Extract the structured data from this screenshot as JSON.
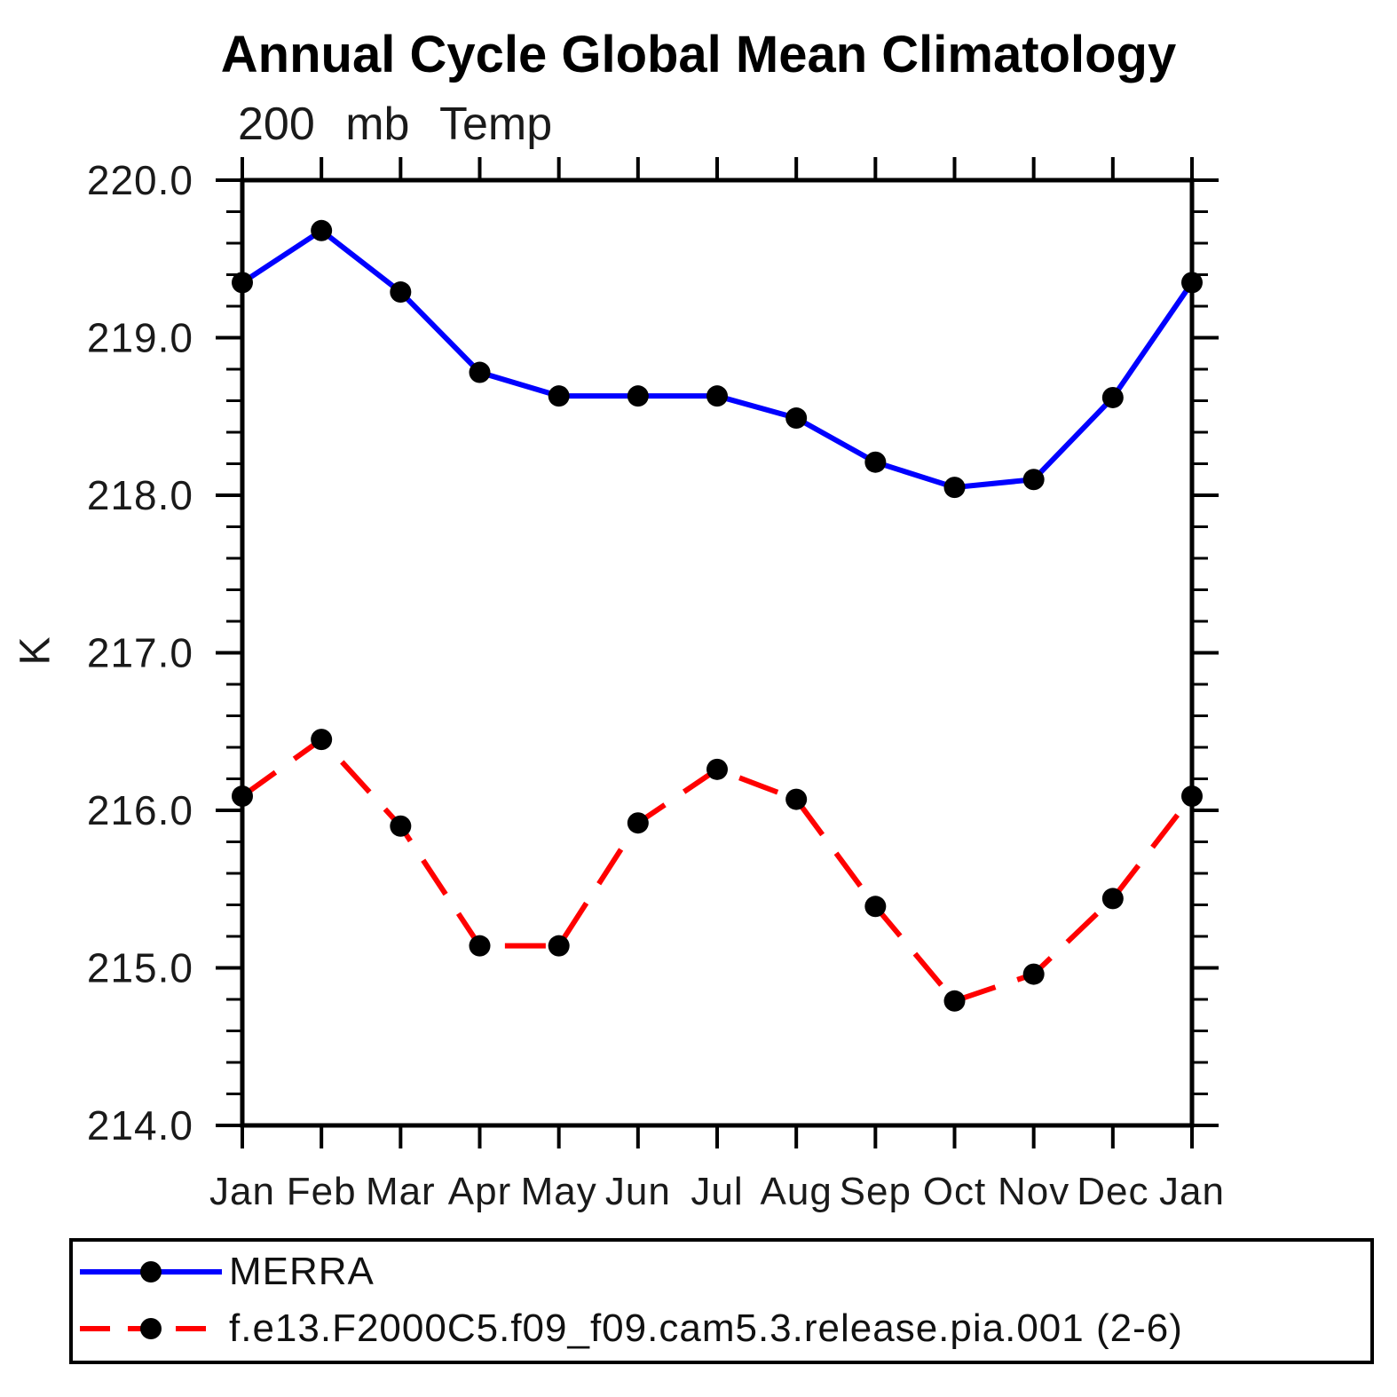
{
  "title": "Annual Cycle Global Mean Climatology",
  "subtitle": "200 mb Temp",
  "chart_data": {
    "type": "line",
    "title": "Annual Cycle Global Mean Climatology",
    "subtitle": "200 mb Temp",
    "ylabel": "K",
    "xlabel": "",
    "categories": [
      "Jan",
      "Feb",
      "Mar",
      "Apr",
      "May",
      "Jun",
      "Jul",
      "Aug",
      "Sep",
      "Oct",
      "Nov",
      "Dec",
      "Jan"
    ],
    "ylim": [
      214.0,
      220.0
    ],
    "yticks": [
      {
        "value": 220.0,
        "label": "220.0"
      },
      {
        "value": 219.0,
        "label": "219.0"
      },
      {
        "value": 218.0,
        "label": "218.0"
      },
      {
        "value": 217.0,
        "label": "217.0"
      },
      {
        "value": 216.0,
        "label": "216.0"
      },
      {
        "value": 215.0,
        "label": "215.0"
      },
      {
        "value": 214.0,
        "label": "214.0"
      }
    ],
    "minor_tick_step": 0.2,
    "grid": false,
    "legend_position": "bottom-box",
    "marker_color": "#000000",
    "series": [
      {
        "name": "MERRA",
        "line_color": "#0000ff",
        "line_style": "solid",
        "values": [
          219.35,
          219.68,
          219.29,
          218.78,
          218.63,
          218.63,
          218.63,
          218.49,
          218.21,
          218.05,
          218.1,
          218.62,
          219.35
        ]
      },
      {
        "name": "f.e13.F2000C5.f09_f09.cam5.3.release.pia.001 (2-6)",
        "line_color": "#ff0000",
        "line_style": "dashed",
        "values": [
          216.09,
          216.45,
          215.9,
          215.14,
          215.14,
          215.92,
          216.26,
          216.07,
          215.39,
          214.79,
          214.96,
          215.44,
          216.09
        ]
      }
    ]
  }
}
